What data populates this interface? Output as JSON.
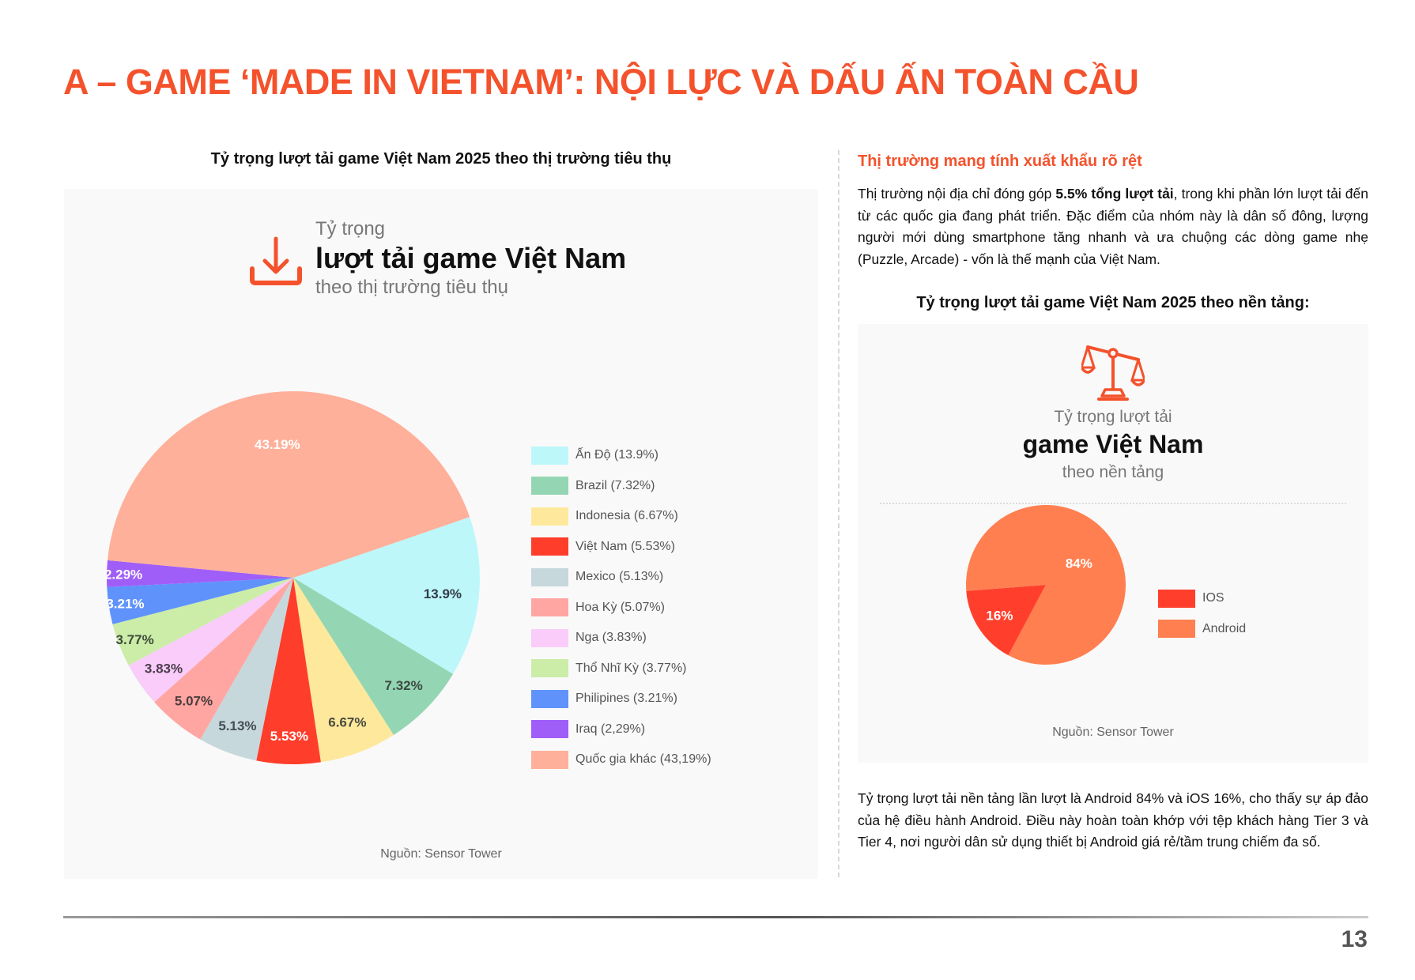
{
  "page": {
    "title": "A – GAME ‘MADE IN VIETNAM’: NỘI LỰC VÀ DẤU ẤN TOÀN CẦU",
    "page_number": "13",
    "accent_color": "#f4522c"
  },
  "left": {
    "heading": "Tỷ trọng lượt tải game Việt Nam 2025 theo thị trường tiêu thụ",
    "panel": {
      "icon": "download-icon",
      "sub1": "Tỷ trọng",
      "main": "lượt tải game Việt Nam",
      "sub2": "theo thị trường tiêu thụ",
      "source": "Nguồn: Sensor Tower"
    },
    "legend": [
      {
        "label": "Ấn Độ (13.9%)",
        "color": "#bdf7fa"
      },
      {
        "label": "Brazil (7.32%)",
        "color": "#94d6b3"
      },
      {
        "label": "Indonesia (6.67%)",
        "color": "#fde89c"
      },
      {
        "label": "Việt Nam (5.53%)",
        "color": "#ff3d2b"
      },
      {
        "label": "Mexico (5.13%)",
        "color": "#c7d8dc"
      },
      {
        "label": "Hoa Kỳ (5.07%)",
        "color": "#ffa6a3"
      },
      {
        "label": "Nga (3.83%)",
        "color": "#f9ccfa"
      },
      {
        "label": "Thổ Nhĩ Kỳ (3.77%)",
        "color": "#cbeda8"
      },
      {
        "label": "Philipines (3.21%)",
        "color": "#5f93fb"
      },
      {
        "label": "Iraq (2,29%)",
        "color": "#a05ef8"
      },
      {
        "label": "Quốc gia khác (43,19%)",
        "color": "#ffb09a"
      }
    ]
  },
  "right": {
    "heading": "Thị trường mang tính xuất khẩu rõ rệt",
    "para1_pre": "Thị trường nội địa chỉ đóng góp ",
    "para1_bold": "5.5% tổng lượt tải",
    "para1_post": ", trong khi phần lớn lượt tải đến từ các quốc gia đang phát triển. Đặc điểm của nhóm này là dân số đông, lượng người mới dùng smartphone tăng nhanh và ưa chuộng các dòng game nhẹ (Puzzle, Arcade) - vốn là thế mạnh của Việt Nam.",
    "chart_title": "Tỷ trọng lượt tải game Việt Nam 2025 theo nền tảng:",
    "panel": {
      "icon": "scale-icon",
      "sub1": "Tỷ trọng lượt tải",
      "main": "game Việt Nam",
      "sub2": "theo nền tảng",
      "source": "Nguồn: Sensor Tower"
    },
    "legend": [
      {
        "label": "IOS",
        "color": "#ff3f2c"
      },
      {
        "label": "Android",
        "color": "#ff7f50"
      }
    ],
    "para2": "Tỷ trọng lượt tải nền tảng lần lượt là Android 84% và iOS 16%, cho thấy sự áp đảo của hệ điều hành Android. Điều này hoàn toàn khớp với tệp khách hàng Tier 3 và Tier 4, nơi người dân sử dụng thiết bị Android giá rẻ/tầm trung chiếm đa số."
  },
  "chart_data": [
    {
      "type": "pie",
      "title": "Tỷ trọng lượt tải game Việt Nam theo thị trường tiêu thụ",
      "categories": [
        "Ấn Độ",
        "Brazil",
        "Indonesia",
        "Việt Nam",
        "Mexico",
        "Hoa Kỳ",
        "Nga",
        "Thổ Nhĩ Kỳ",
        "Philipines",
        "Iraq",
        "Quốc gia khác"
      ],
      "values": [
        13.9,
        7.32,
        6.67,
        5.53,
        5.13,
        5.07,
        3.83,
        3.77,
        3.21,
        2.29,
        43.19
      ],
      "labels": [
        "13.9%",
        "7.32%",
        "6.67%",
        "5.53%",
        "5.13%",
        "5.07%",
        "3.83%",
        "3.77%",
        "3.21%",
        "2.29%",
        "43.19%"
      ],
      "colors": [
        "#bdf7fa",
        "#94d6b3",
        "#fde89c",
        "#ff3d2b",
        "#c7d8dc",
        "#ffa6a3",
        "#f9ccfa",
        "#cbeda8",
        "#5f93fb",
        "#a05ef8",
        "#ffb09a"
      ],
      "label_colors": [
        "#333a44",
        "#3e4a45",
        "#4a4a3e",
        "#ffffff",
        "#444c55",
        "#4a3c3c",
        "#4a3c4a",
        "#3e4a3a",
        "#ffffff",
        "#ffffff",
        "#ffffff"
      ],
      "legend_position": "right",
      "source": "Nguồn: Sensor Tower"
    },
    {
      "type": "pie",
      "title": "Tỷ trọng lượt tải game Việt Nam theo nền tảng",
      "categories": [
        "IOS",
        "Android"
      ],
      "values": [
        16,
        84
      ],
      "labels": [
        "16%",
        "84%"
      ],
      "colors": [
        "#ff3f2c",
        "#ff7f50"
      ],
      "legend_position": "right",
      "source": "Nguồn: Sensor Tower"
    }
  ]
}
